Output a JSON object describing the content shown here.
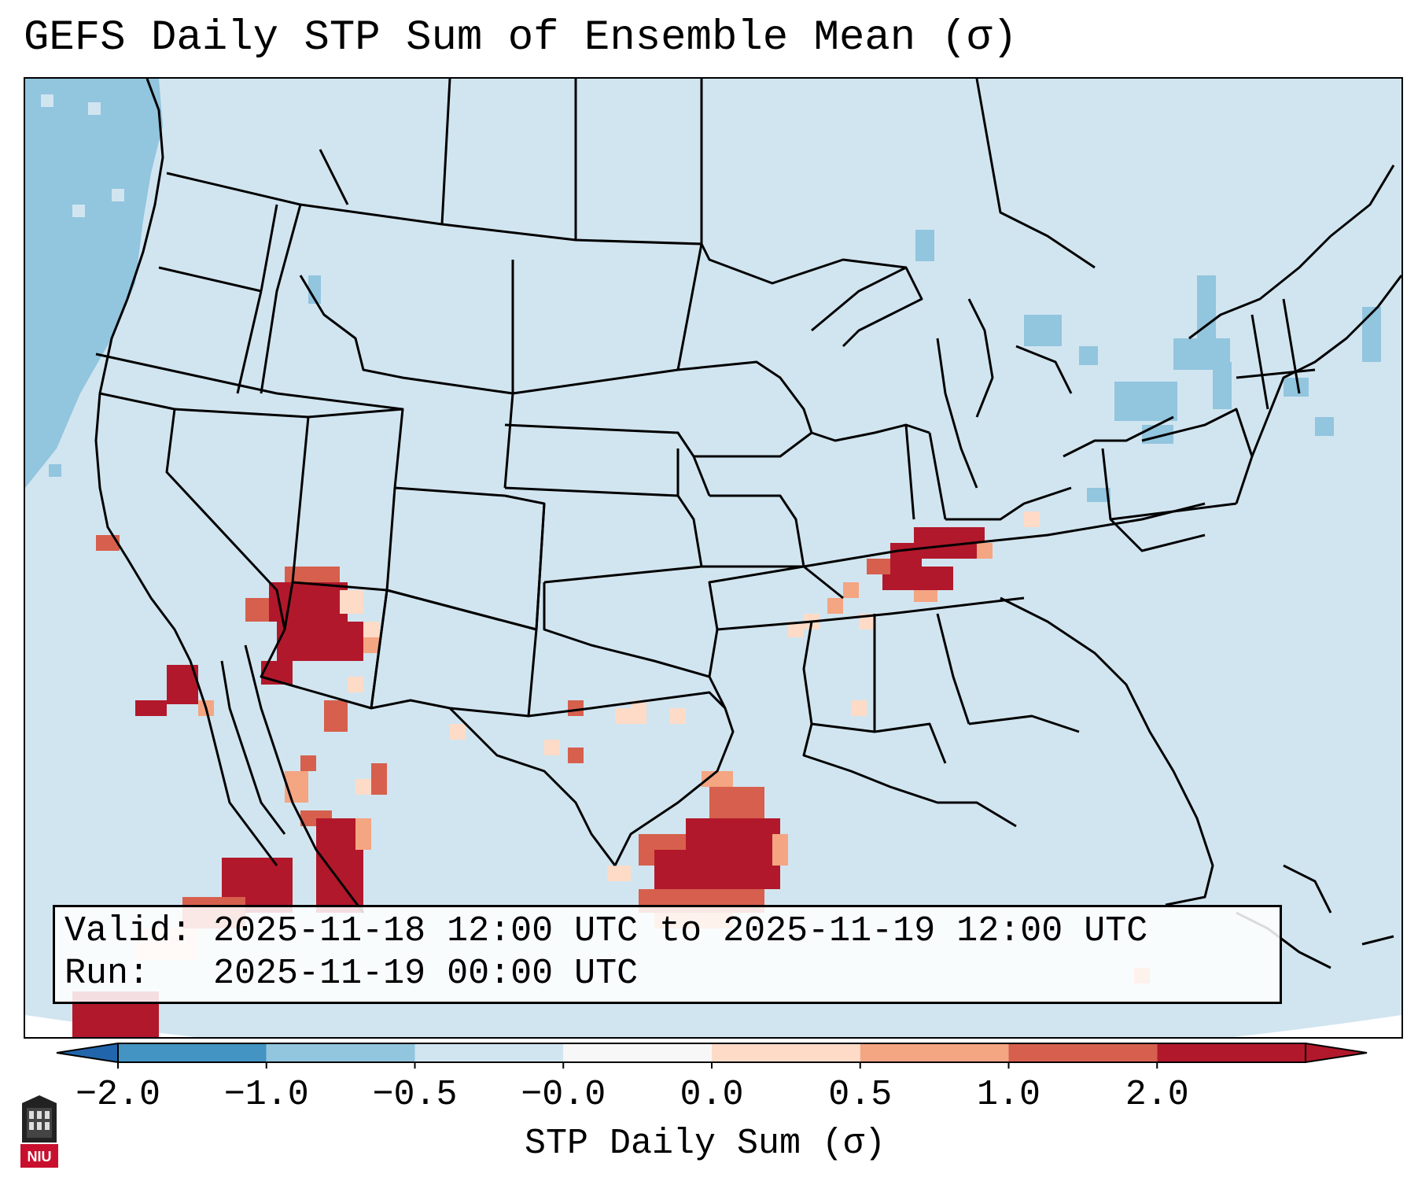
{
  "title": "GEFS Daily STP Sum of Ensemble Mean (σ)",
  "info": {
    "valid_label": "Valid:",
    "valid_value": "2025-11-18 12:00 UTC to 2025-11-19 12:00 UTC",
    "run_label": "Run:",
    "run_value": "2025-11-19 00:00 UTC"
  },
  "colorbar": {
    "label": "STP Daily Sum (σ)",
    "ticks": [
      "−2.0",
      "−1.0",
      "−0.5",
      "−0.0",
      "0.0",
      "0.5",
      "1.0",
      "2.0"
    ],
    "colors": [
      "#4393c3",
      "#92c5de",
      "#d1e5f0",
      "#f7f7f7",
      "#fddbc7",
      "#f4a582",
      "#d6604d",
      "#b2182b"
    ],
    "extend_min_color": "#2166ac",
    "extend_max_color": "#b2182b"
  },
  "map": {
    "ocean_color": "#d1e5f0",
    "land_color": "#d1e5f0",
    "outline_color": "#000000"
  },
  "logo": {
    "text": "NIU"
  }
}
